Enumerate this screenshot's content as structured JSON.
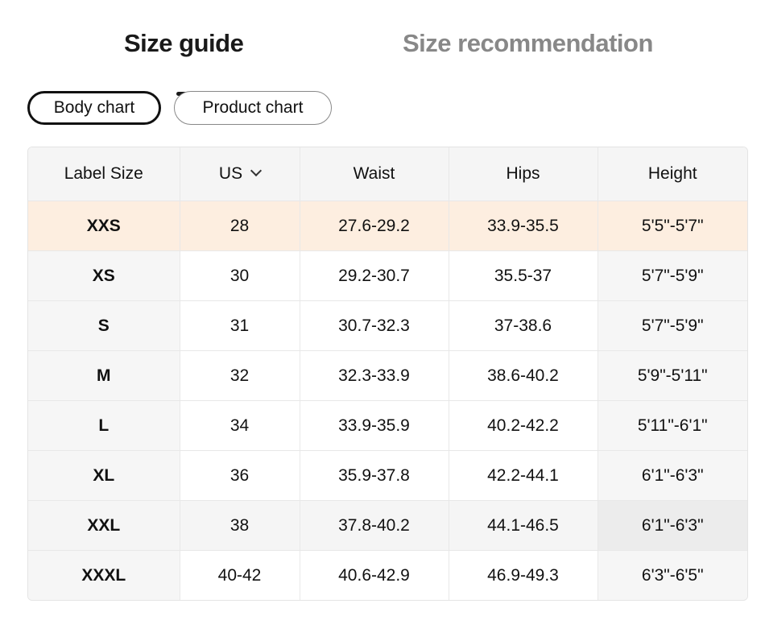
{
  "tabs": [
    {
      "label": "Size guide",
      "active": true
    },
    {
      "label": "Size recommendation",
      "active": false
    }
  ],
  "chart_toggle": [
    {
      "label": "Body chart",
      "selected": true
    },
    {
      "label": "Product chart",
      "selected": false
    }
  ],
  "table": {
    "headers": [
      "Label Size",
      "US",
      "Waist",
      "Hips",
      "Height"
    ],
    "unit_dropdown_icon": "chevron-down-icon",
    "highlighted_row": "XXS",
    "hovered_row": "XXL",
    "rows": [
      [
        "XXS",
        "28",
        "27.6-29.2",
        "33.9-35.5",
        "5'5\"-5'7\""
      ],
      [
        "XS",
        "30",
        "29.2-30.7",
        "35.5-37",
        "5'7\"-5'9\""
      ],
      [
        "S",
        "31",
        "30.7-32.3",
        "37-38.6",
        "5'7\"-5'9\""
      ],
      [
        "M",
        "32",
        "32.3-33.9",
        "38.6-40.2",
        "5'9\"-5'11\""
      ],
      [
        "L",
        "34",
        "33.9-35.9",
        "40.2-42.2",
        "5'11\"-6'1\""
      ],
      [
        "XL",
        "36",
        "35.9-37.8",
        "42.2-44.1",
        "6'1\"-6'3\""
      ],
      [
        "XXL",
        "38",
        "37.8-40.2",
        "44.1-46.5",
        "6'1\"-6'3\""
      ],
      [
        "XXXL",
        "40-42",
        "40.6-42.9",
        "46.9-49.3",
        "6'3\"-6'5\""
      ]
    ]
  },
  "colors": {
    "highlight_row": "#fdeee0",
    "header_bg": "#f5f5f5",
    "inactive_tab": "#888888"
  }
}
